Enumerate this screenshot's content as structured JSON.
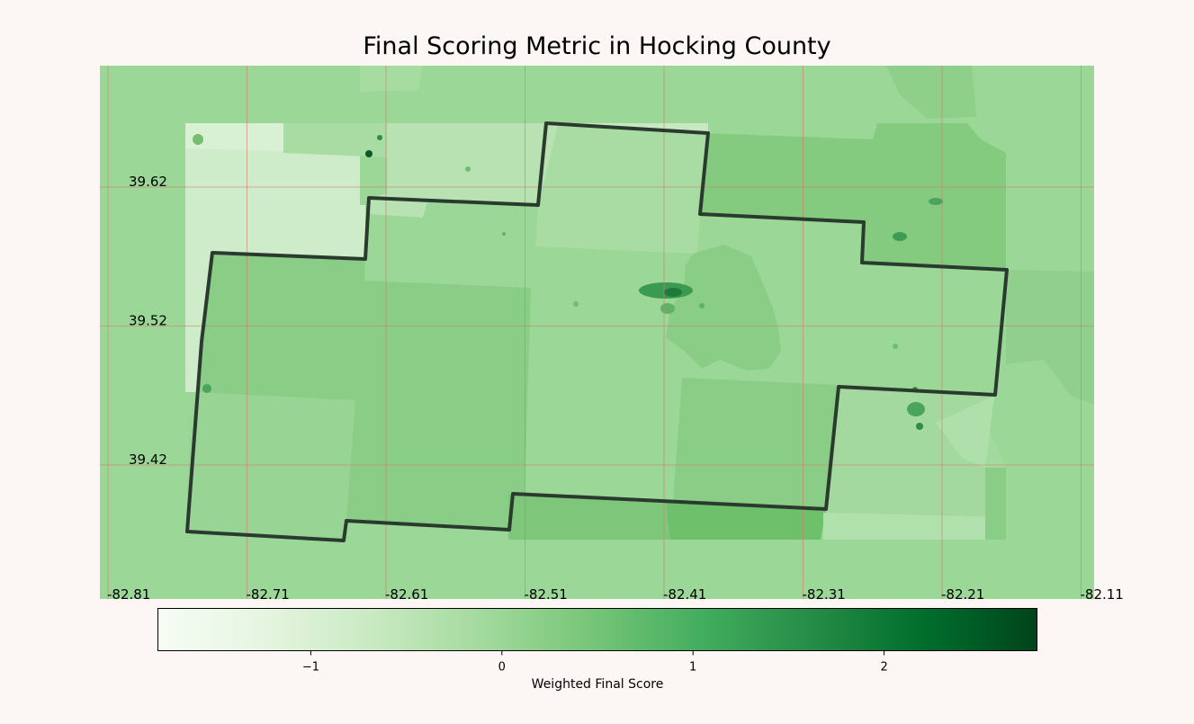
{
  "title": "Final Scoring Metric in Hocking County",
  "latitude_labels": [
    "39.62",
    "39.52",
    "39.42"
  ],
  "longitude_labels": [
    "-82.81",
    "-82.71",
    "-82.61",
    "-82.51",
    "-82.41",
    "-82.31",
    "-82.21",
    "-82.11"
  ],
  "colorbar": {
    "label": "Weighted Final Score",
    "ticks": [
      "−1",
      "0",
      "1",
      "2"
    ],
    "tick_values": [
      -1,
      0,
      1,
      2
    ],
    "range": [
      -1.8,
      2.8
    ],
    "colormap": [
      "#f7fcf5",
      "#e5f5e0",
      "#c7e9c0",
      "#a1d99b",
      "#74c476",
      "#41ab5d",
      "#238b45",
      "#006d2c",
      "#00441b"
    ]
  },
  "colors": {
    "background": "#fcf7f5",
    "gridline": "#d47a6e",
    "county_outline": "#2b3a2e",
    "base_fill": "#9bd796"
  }
}
